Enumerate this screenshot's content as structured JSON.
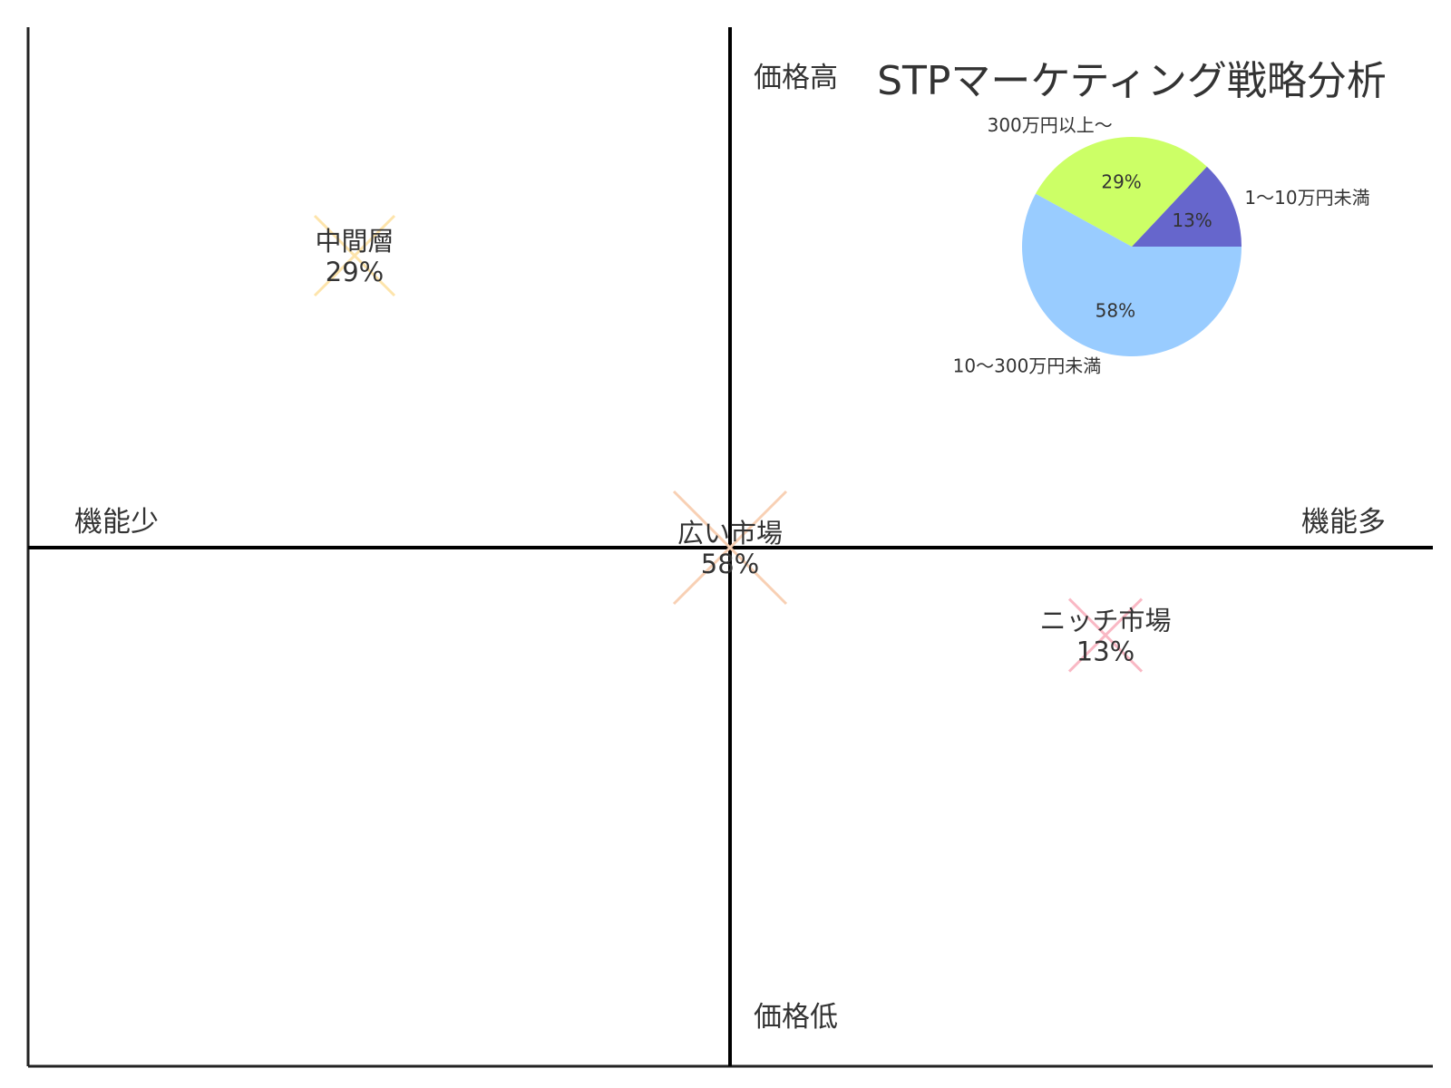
{
  "chart_data": [
    {
      "type": "scatter",
      "subtype": "positioning-map",
      "axes": {
        "top": "価格高",
        "bottom": "価格低",
        "left": "機能少",
        "right": "機能多"
      },
      "x": [
        -1,
        0,
        1
      ],
      "y": [
        1,
        0,
        -0.3
      ],
      "points": [
        {
          "label": "中間層",
          "value": "29%",
          "x": -1,
          "y": 1,
          "color": "#fde4ab"
        },
        {
          "label": "広い市場",
          "value": "58%",
          "x": 0,
          "y": 0,
          "color": "#f8d0b4"
        },
        {
          "label": "ニッチ市場",
          "value": "13%",
          "x": 1,
          "y": -0.3,
          "color": "#f9b8c4"
        }
      ],
      "xlim": [
        -2,
        2
      ],
      "ylim": [
        -1.5,
        1.5
      ],
      "grid": false,
      "legend": "none"
    },
    {
      "type": "pie",
      "title": "STPマーケティング戦略分析",
      "slices": [
        {
          "label": "1〜10万円未満",
          "value": 13,
          "pct": "13%",
          "color": "#6666cc"
        },
        {
          "label": "300万円以上〜",
          "value": 29,
          "pct": "29%",
          "color": "#ccff66"
        },
        {
          "label": "10〜300万円未満",
          "value": 58,
          "pct": "58%",
          "color": "#99ccff"
        }
      ],
      "start_angle_deg": 0,
      "direction": "counterclockwise"
    }
  ]
}
